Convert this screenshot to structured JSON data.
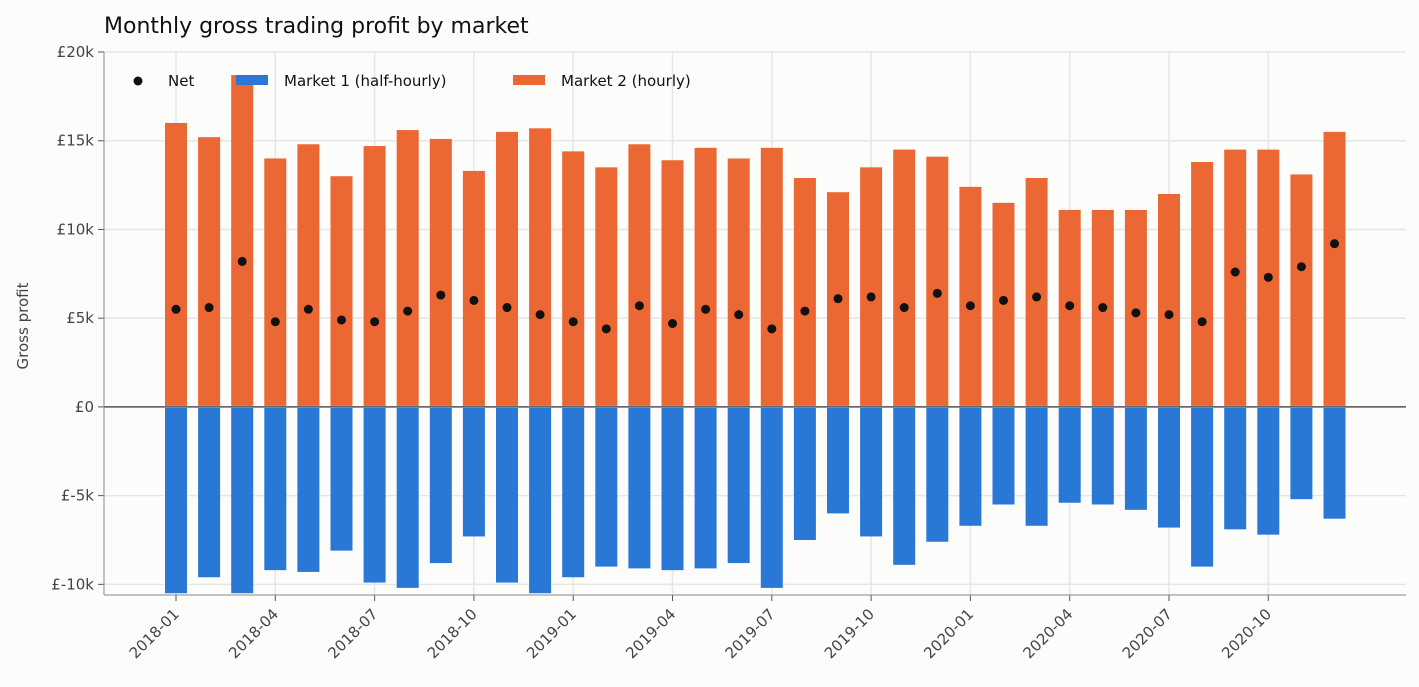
{
  "chart_data": {
    "type": "bar",
    "title": "Monthly gross trading profit by market",
    "xlabel": "",
    "ylabel": "Gross profit",
    "ylim": [
      -10600,
      20000
    ],
    "yticks": [
      -10000,
      -5000,
      0,
      5000,
      10000,
      15000,
      20000
    ],
    "ytick_labels": [
      "£-10k",
      "£-5k",
      "£0",
      "£5k",
      "£10k",
      "£15k",
      "£20k"
    ],
    "xtick_labels": [
      "2018-01",
      "2018-04",
      "2018-07",
      "2018-10",
      "2019-01",
      "2019-04",
      "2019-07",
      "2019-10",
      "2020-01",
      "2020-04",
      "2020-07",
      "2020-10"
    ],
    "xtick_every": 3,
    "grid": true,
    "legend_position": "top-left",
    "categories": [
      "2018-01",
      "2018-02",
      "2018-03",
      "2018-04",
      "2018-05",
      "2018-06",
      "2018-07",
      "2018-08",
      "2018-09",
      "2018-10",
      "2018-11",
      "2018-12",
      "2019-01",
      "2019-02",
      "2019-03",
      "2019-04",
      "2019-05",
      "2019-06",
      "2019-07",
      "2019-08",
      "2019-09",
      "2019-10",
      "2019-11",
      "2019-12",
      "2020-01",
      "2020-02",
      "2020-03",
      "2020-04",
      "2020-05",
      "2020-06",
      "2020-07",
      "2020-08",
      "2020-09",
      "2020-10",
      "2020-11",
      "2020-12"
    ],
    "series": [
      {
        "name": "Market 1 (half-hourly)",
        "kind": "bar",
        "color": "#2a78d6",
        "values": [
          -10500,
          -9600,
          -10500,
          -9200,
          -9300,
          -8100,
          -9900,
          -10200,
          -8800,
          -7300,
          -9900,
          -10500,
          -9600,
          -9000,
          -9100,
          -9200,
          -9100,
          -8800,
          -10200,
          -7500,
          -6000,
          -7300,
          -8900,
          -7600,
          -6700,
          -5500,
          -6700,
          -5400,
          -5500,
          -5800,
          -6800,
          -9000,
          -6900,
          -7200,
          -5200,
          -6300
        ]
      },
      {
        "name": "Market 2 (hourly)",
        "kind": "bar",
        "color": "#eb6834",
        "values": [
          16000,
          15200,
          18700,
          14000,
          14800,
          13000,
          14700,
          15600,
          15100,
          13300,
          15500,
          15700,
          14400,
          13500,
          14800,
          13900,
          14600,
          14000,
          14600,
          12900,
          12100,
          13500,
          14500,
          14100,
          12400,
          11500,
          12900,
          11100,
          11100,
          11100,
          12000,
          13800,
          14500,
          14500,
          13100,
          15500
        ]
      },
      {
        "name": "Net",
        "kind": "scatter",
        "color": "#111111",
        "values": [
          5500,
          5600,
          8200,
          4800,
          5500,
          4900,
          4800,
          5400,
          6300,
          6000,
          5600,
          5200,
          4800,
          4400,
          5700,
          4700,
          5500,
          5200,
          4400,
          5400,
          6100,
          6200,
          5600,
          6400,
          5700,
          6000,
          6200,
          5700,
          5600,
          5300,
          5200,
          4800,
          7600,
          7300,
          7900,
          9200
        ]
      }
    ]
  }
}
